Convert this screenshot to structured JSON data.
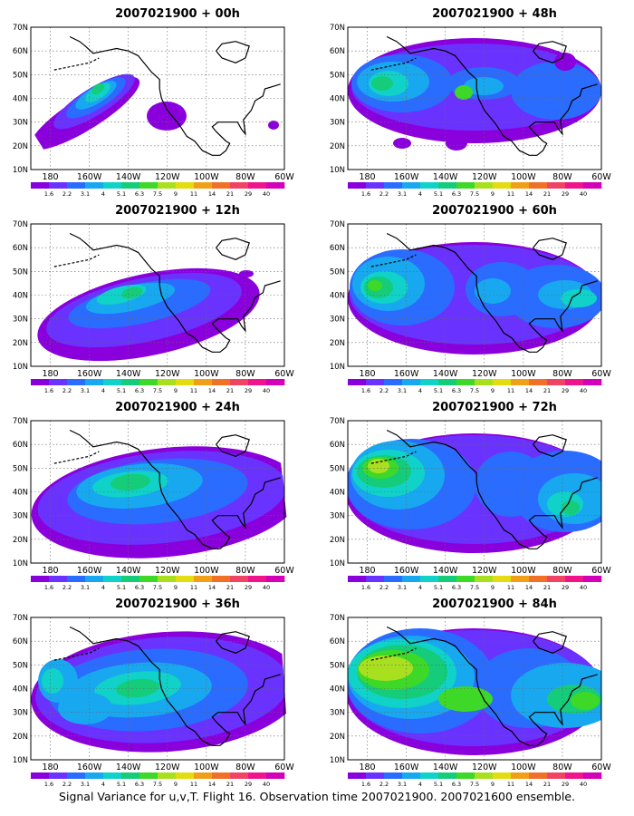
{
  "panels": [
    {
      "id": "p00",
      "title": "2007021900 + 00h"
    },
    {
      "id": "p48",
      "title": "2007021900 + 48h"
    },
    {
      "id": "p12",
      "title": "2007021900 + 12h"
    },
    {
      "id": "p60",
      "title": "2007021900 + 60h"
    },
    {
      "id": "p24",
      "title": "2007021900 + 24h"
    },
    {
      "id": "p72",
      "title": "2007021900 + 72h"
    },
    {
      "id": "p36",
      "title": "2007021900 + 36h"
    },
    {
      "id": "p84",
      "title": "2007021900 + 84h"
    }
  ],
  "lat_labels": [
    "70N",
    "60N",
    "50N",
    "40N",
    "30N",
    "20N",
    "10N"
  ],
  "lon_labels": [
    "180",
    "160W",
    "140W",
    "120W",
    "100W",
    "80W",
    "60W"
  ],
  "colorbar": {
    "labels": [
      "1.6",
      "2.2",
      "3.1",
      "4",
      "5.1",
      "6.3",
      "7.5",
      "9",
      "11",
      "14",
      "21",
      "29",
      "40"
    ],
    "colors": [
      "#8a00dc",
      "#6a32ff",
      "#2a6cff",
      "#18a8f0",
      "#10d2c8",
      "#14cc7a",
      "#3ed828",
      "#a8e020",
      "#e2dc10",
      "#f0a018",
      "#f07028",
      "#f04464",
      "#f0148c",
      "#d200b8"
    ]
  },
  "caption": "Signal Variance for u,v,T. Flight 16. Observation time 2007021900. 2007021600 ensemble."
}
